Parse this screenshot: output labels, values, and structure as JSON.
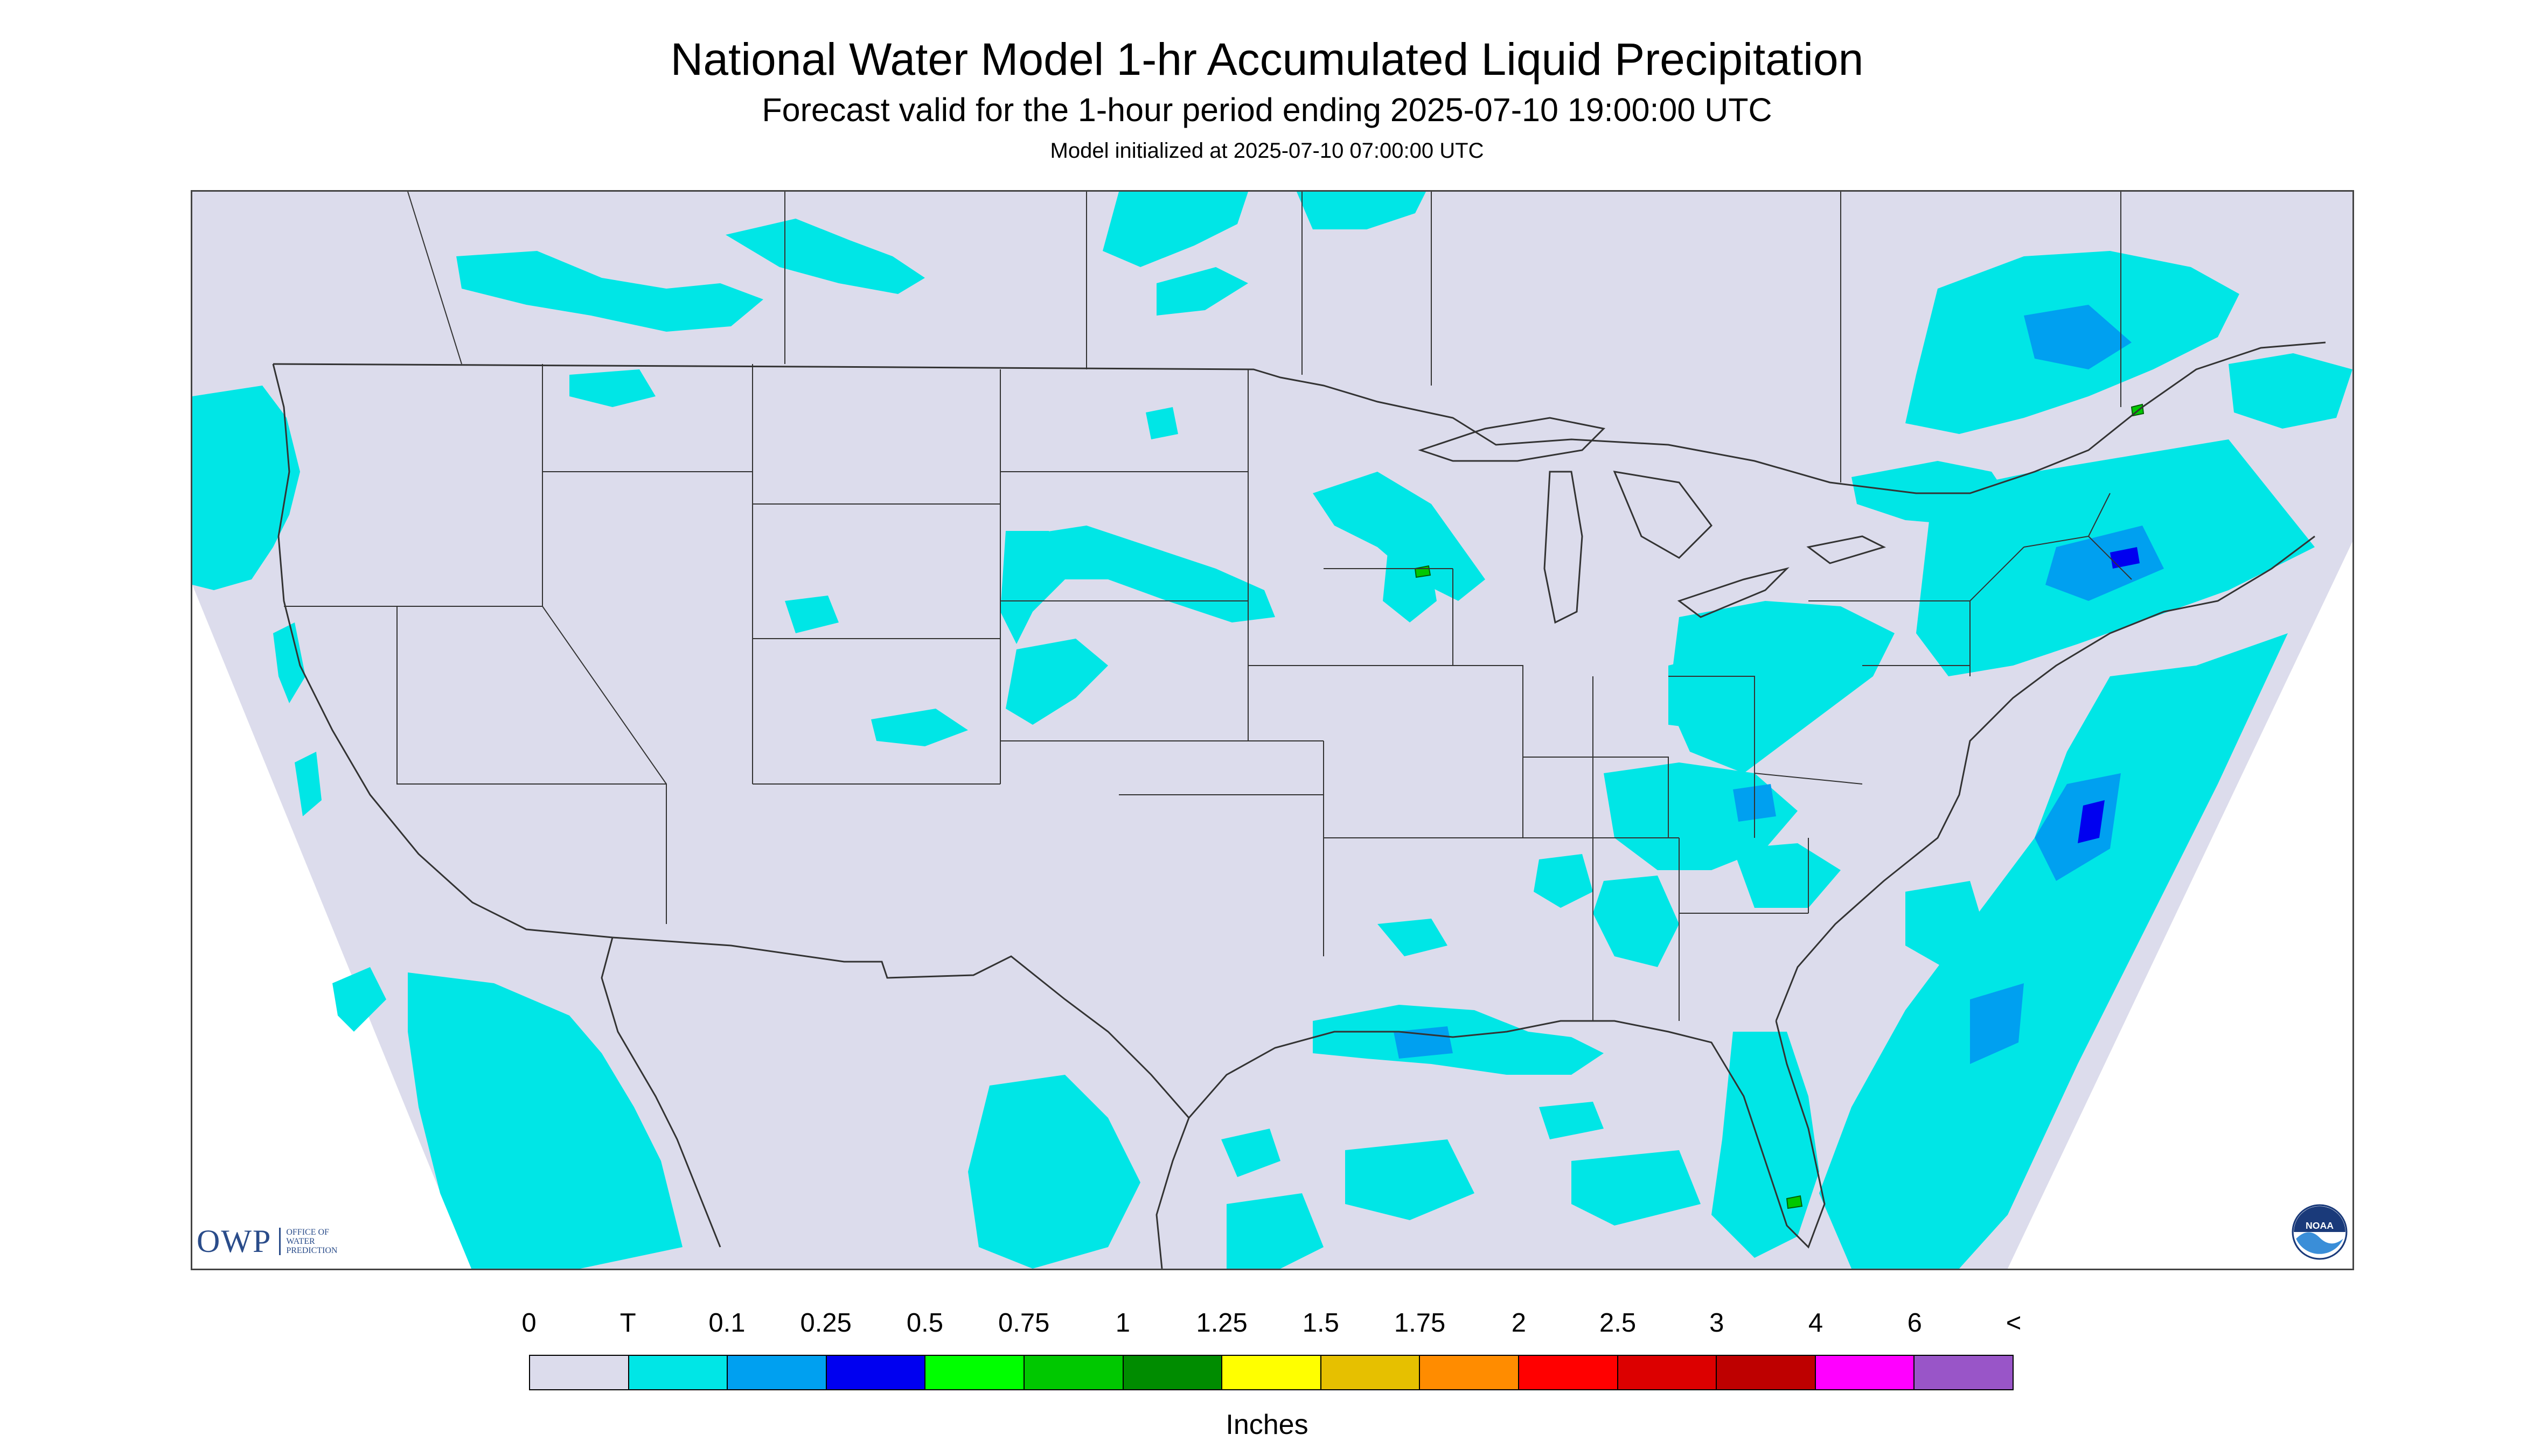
{
  "title": "National Water Model 1-hr Accumulated Liquid Precipitation",
  "subtitle": "Forecast valid for the 1-hour period ending 2025-07-10 19:00:00 UTC",
  "init_line": "Model initialized at 2025-07-10 07:00:00 UTC",
  "logos": {
    "owp_mark": "OWP",
    "owp_text": "OFFICE OF WATER PREDICTION",
    "noaa_text": "NOAA"
  },
  "legend": {
    "units": "Inches",
    "labels": [
      "0",
      "T",
      "0.1",
      "0.25",
      "0.5",
      "0.75",
      "1",
      "1.25",
      "1.5",
      "1.75",
      "2",
      "2.5",
      "3",
      "4",
      "6",
      "<"
    ],
    "colors": [
      "#dcdcec",
      "#00e6e6",
      "#00a0f0",
      "#0000f0",
      "#00ff00",
      "#00c800",
      "#008c00",
      "#ffff00",
      "#e6c000",
      "#ff8c00",
      "#ff0000",
      "#dc0000",
      "#be0000",
      "#ff00ff",
      "#9955c8"
    ]
  },
  "map_colors": {
    "background": "#dcdcec",
    "trace": "#00e6e6",
    "light": "#00a0f0",
    "moderate": "#0000f0",
    "heavy": "#00c800",
    "boundaries": "#333333"
  }
}
